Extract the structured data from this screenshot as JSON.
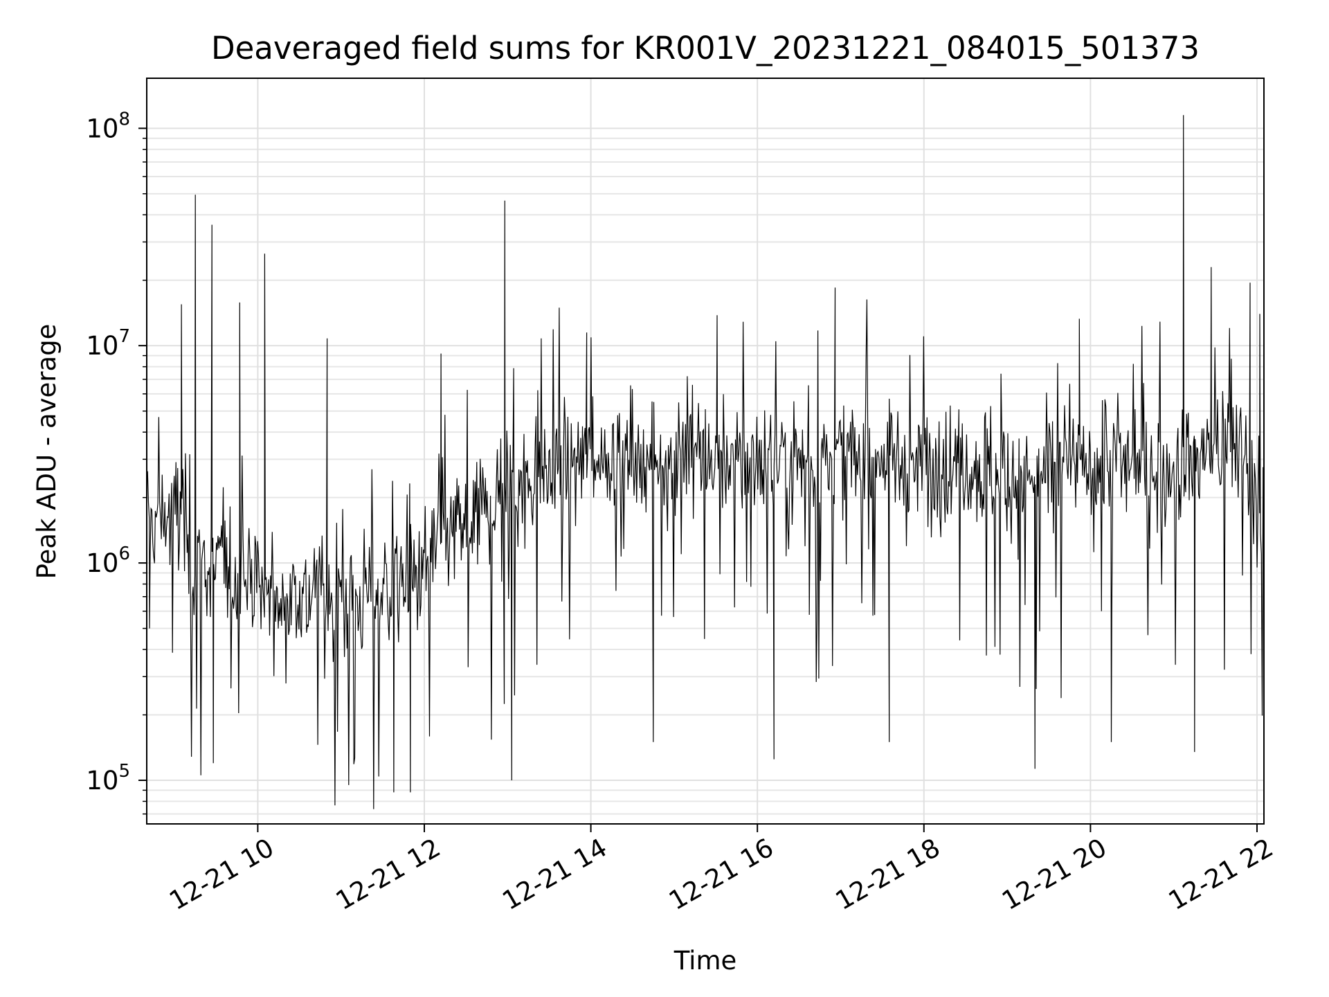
{
  "chart_data": {
    "type": "line",
    "title": "Deaveraged field sums for KR001V_20231221_084015_501373",
    "xlabel": "Time",
    "ylabel": "Peak ADU - average",
    "y_scale": "log",
    "grid": true,
    "x_range": [
      "2023-12-21 08:40",
      "2023-12-21 22:05"
    ],
    "y_range": [
      63000,
      170000000
    ],
    "x_ticks": [
      {
        "value": "2023-12-21 10:00",
        "label": "12-21 10"
      },
      {
        "value": "2023-12-21 12:00",
        "label": "12-21 12"
      },
      {
        "value": "2023-12-21 14:00",
        "label": "12-21 14"
      },
      {
        "value": "2023-12-21 16:00",
        "label": "12-21 16"
      },
      {
        "value": "2023-12-21 18:00",
        "label": "12-21 18"
      },
      {
        "value": "2023-12-21 20:00",
        "label": "12-21 20"
      },
      {
        "value": "2023-12-21 22:00",
        "label": "12-21 22"
      }
    ],
    "y_ticks": [
      {
        "value": 100000,
        "base": "10",
        "exp": "5"
      },
      {
        "value": 1000000,
        "base": "10",
        "exp": "6"
      },
      {
        "value": 10000000,
        "base": "10",
        "exp": "7"
      },
      {
        "value": 100000000,
        "base": "10",
        "exp": "8"
      }
    ],
    "line_color": "#000000",
    "series": [
      {
        "x": [
          "08:40",
          "08:55",
          "09:05",
          "09:12",
          "09:18",
          "09:25",
          "09:35",
          "09:45",
          "09:55",
          "10:05",
          "10:15",
          "10:30",
          "10:45",
          "11:00",
          "11:15",
          "11:30",
          "11:45",
          "12:00",
          "12:15",
          "12:30",
          "12:45",
          "13:00",
          "13:15",
          "13:30",
          "13:45",
          "14:00",
          "14:15",
          "14:30",
          "14:45",
          "15:00",
          "15:15",
          "15:30",
          "15:45",
          "16:00",
          "16:15",
          "16:30",
          "16:45",
          "17:00",
          "17:15",
          "17:30",
          "17:45",
          "18:00",
          "18:15",
          "18:30",
          "18:45",
          "19:00",
          "19:15",
          "19:30",
          "19:45",
          "20:00",
          "20:15",
          "20:30",
          "20:45",
          "21:00",
          "21:10",
          "21:20",
          "21:35",
          "21:50",
          "22:00",
          "22:05"
        ],
        "y": [
          1500000,
          1600000,
          1800000,
          1000000,
          1100000,
          900000,
          1000000,
          850000,
          900000,
          700000,
          650000,
          750000,
          700000,
          650000,
          700000,
          750000,
          750000,
          1000000,
          1300000,
          1500000,
          1800000,
          2200000,
          2500000,
          2700000,
          2900000,
          3000000,
          3200000,
          3100000,
          3000000,
          3200000,
          3300000,
          3100000,
          3000000,
          3100000,
          3000000,
          3000000,
          2900000,
          3000000,
          3000000,
          3100000,
          3000000,
          2900000,
          2800000,
          2900000,
          2700000,
          2600000,
          2400000,
          2600000,
          2700000,
          2800000,
          2900000,
          2800000,
          3000000,
          2700000,
          3000000,
          3200000,
          3400000,
          3500000,
          2000000,
          1500000
        ],
        "spikes": [
          {
            "x": "08:42",
            "y": 500000
          },
          {
            "x": "09:05",
            "y": 15500000
          },
          {
            "x": "09:15",
            "y": 49500000
          },
          {
            "x": "09:27",
            "y": 36000000
          },
          {
            "x": "09:28",
            "y": 120000
          },
          {
            "x": "09:47",
            "y": 15800000
          },
          {
            "x": "10:05",
            "y": 26500000
          },
          {
            "x": "10:50",
            "y": 10800000
          },
          {
            "x": "11:38",
            "y": 88000
          },
          {
            "x": "11:50",
            "y": 88000
          },
          {
            "x": "12:12",
            "y": 9200000
          },
          {
            "x": "12:58",
            "y": 46500000
          },
          {
            "x": "13:03",
            "y": 100000
          },
          {
            "x": "13:57",
            "y": 11500000
          },
          {
            "x": "14:45",
            "y": 150000
          },
          {
            "x": "15:31",
            "y": 13800000
          },
          {
            "x": "16:12",
            "y": 125000
          },
          {
            "x": "16:56",
            "y": 18500000
          },
          {
            "x": "17:35",
            "y": 150000
          },
          {
            "x": "19:20",
            "y": 113000
          },
          {
            "x": "19:52",
            "y": 13300000
          },
          {
            "x": "20:15",
            "y": 150000
          },
          {
            "x": "21:07",
            "y": 115000000
          },
          {
            "x": "21:15",
            "y": 135000
          },
          {
            "x": "21:27",
            "y": 23000000
          },
          {
            "x": "21:55",
            "y": 19500000
          },
          {
            "x": "22:02",
            "y": 14000000
          }
        ]
      }
    ]
  }
}
